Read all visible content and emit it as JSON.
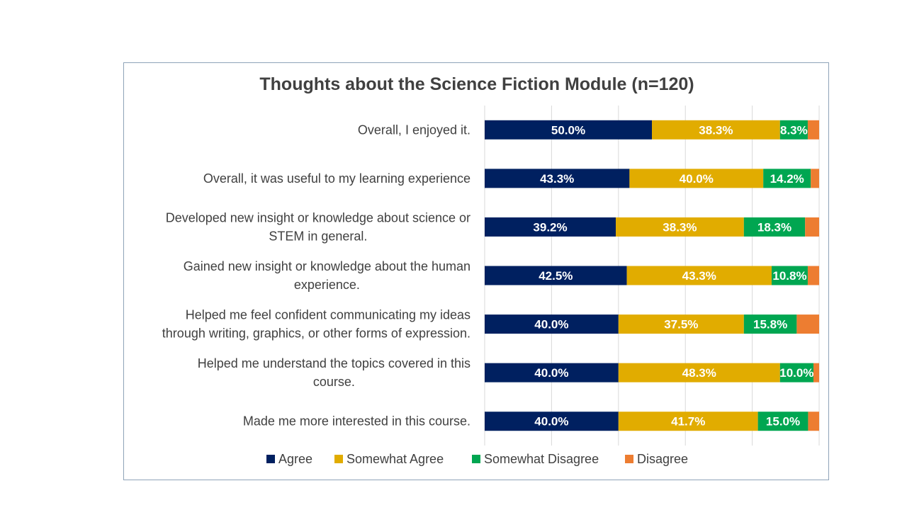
{
  "chart_data": {
    "type": "bar",
    "orientation": "horizontal",
    "stacked": true,
    "title": "Thoughts about the Science Fiction Module (n=120)",
    "categories": [
      [
        "Overall, I enjoyed it."
      ],
      [
        "Overall, it was useful to my learning experience"
      ],
      [
        "Developed new insight or knowledge about science or",
        "STEM in general."
      ],
      [
        "Gained new insight or knowledge about the human",
        "experience."
      ],
      [
        "Helped me feel confident communicating my ideas",
        "through writing, graphics, or other forms of expression."
      ],
      [
        "Helped me understand the topics covered in this",
        "course."
      ],
      [
        "Made me more interested in this course."
      ]
    ],
    "series": [
      {
        "name": "Agree",
        "color": "#002060",
        "values": [
          50.0,
          43.3,
          39.2,
          42.5,
          40.0,
          40.0,
          40.0
        ],
        "labels": [
          "50.0%",
          "43.3%",
          "39.2%",
          "42.5%",
          "40.0%",
          "40.0%",
          "40.0%"
        ]
      },
      {
        "name": "Somewhat Agree",
        "color": "#e1ac00",
        "values": [
          38.3,
          40.0,
          38.3,
          43.3,
          37.5,
          48.3,
          41.7
        ],
        "labels": [
          "38.3%",
          "40.0%",
          "38.3%",
          "43.3%",
          "37.5%",
          "48.3%",
          "41.7%"
        ]
      },
      {
        "name": "Somewhat Disagree",
        "color": "#00a651",
        "values": [
          8.3,
          14.2,
          18.3,
          10.8,
          15.8,
          10.0,
          15.0
        ],
        "labels": [
          "8.3%",
          "14.2%",
          "18.3%",
          "10.8%",
          "15.8%",
          "10.0%",
          "15.0%"
        ]
      },
      {
        "name": "Disagree",
        "color": "#ed7d31",
        "values": [
          3.4,
          2.5,
          4.2,
          3.4,
          6.7,
          1.7,
          3.3
        ],
        "labels": [
          "",
          "",
          "",
          "",
          "",
          "",
          ""
        ]
      }
    ],
    "xlim": [
      0,
      100
    ],
    "grid": true,
    "legend": "bottom"
  }
}
